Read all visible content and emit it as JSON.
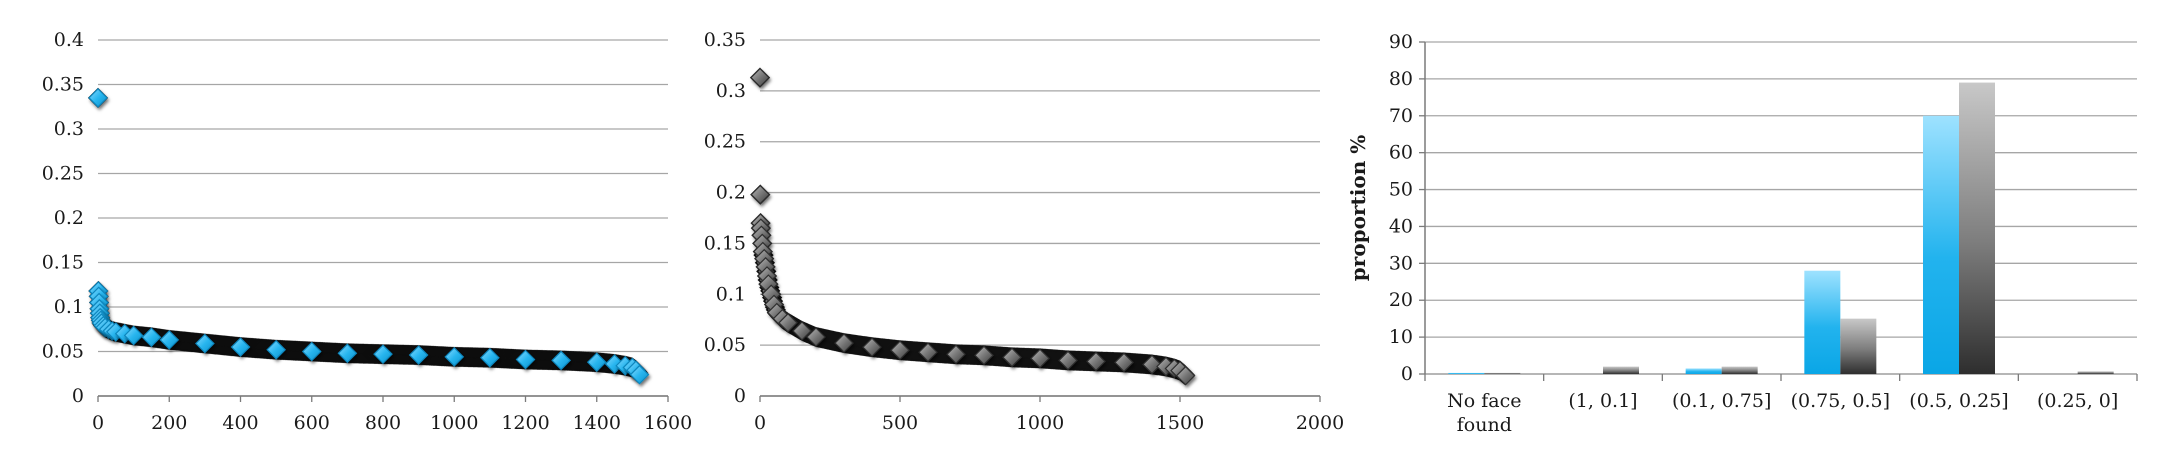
{
  "chart_data": [
    {
      "type": "scatter",
      "title": "",
      "xlabel": "",
      "ylabel": "",
      "xlim": [
        0,
        1600
      ],
      "ylim": [
        0,
        0.4
      ],
      "x_ticks": [
        "0",
        "200",
        "400",
        "600",
        "800",
        "1000",
        "1200",
        "1400",
        "1600"
      ],
      "y_ticks": [
        "0",
        "0.05",
        "0.1",
        "0.15",
        "0.2",
        "0.25",
        "0.3",
        "0.35",
        "0.4"
      ],
      "grid": true,
      "marker": "diamond",
      "color": "#29abe2",
      "series": [
        {
          "x": [
            0,
            1,
            2,
            3,
            4,
            5,
            6,
            8,
            10,
            15,
            20,
            30,
            40,
            50,
            75,
            100,
            150,
            200,
            300,
            400,
            500,
            600,
            700,
            800,
            900,
            1000,
            1100,
            1200,
            1300,
            1400,
            1450,
            1480,
            1500,
            1510,
            1520
          ],
          "y": [
            0.335,
            0.118,
            0.112,
            0.105,
            0.098,
            0.093,
            0.088,
            0.085,
            0.082,
            0.079,
            0.077,
            0.075,
            0.073,
            0.072,
            0.07,
            0.068,
            0.066,
            0.063,
            0.059,
            0.055,
            0.052,
            0.05,
            0.048,
            0.047,
            0.046,
            0.044,
            0.043,
            0.041,
            0.04,
            0.038,
            0.036,
            0.034,
            0.032,
            0.029,
            0.024
          ]
        }
      ]
    },
    {
      "type": "scatter",
      "title": "",
      "xlabel": "",
      "ylabel": "",
      "xlim": [
        0,
        2000
      ],
      "ylim": [
        0,
        0.35
      ],
      "x_ticks": [
        "0",
        "500",
        "1000",
        "1500",
        "2000"
      ],
      "y_ticks": [
        "0",
        "0.05",
        "0.1",
        "0.15",
        "0.2",
        "0.25",
        "0.3",
        "0.35"
      ],
      "grid": true,
      "marker": "diamond",
      "color": "#555555",
      "series": [
        {
          "x": [
            0,
            1,
            2,
            3,
            5,
            8,
            10,
            15,
            20,
            25,
            30,
            40,
            50,
            60,
            80,
            100,
            150,
            200,
            300,
            400,
            500,
            600,
            700,
            800,
            900,
            1000,
            1100,
            1200,
            1300,
            1400,
            1450,
            1480,
            1500,
            1520
          ],
          "y": [
            0.313,
            0.198,
            0.17,
            0.165,
            0.158,
            0.15,
            0.142,
            0.135,
            0.127,
            0.118,
            0.11,
            0.1,
            0.09,
            0.082,
            0.076,
            0.072,
            0.064,
            0.058,
            0.052,
            0.048,
            0.045,
            0.043,
            0.041,
            0.04,
            0.038,
            0.037,
            0.035,
            0.034,
            0.033,
            0.031,
            0.029,
            0.027,
            0.025,
            0.02
          ]
        }
      ]
    },
    {
      "type": "bar",
      "title": "",
      "xlabel": "",
      "ylabel": "proportion %",
      "ylim": [
        0,
        90
      ],
      "y_ticks": [
        "0",
        "10",
        "20",
        "30",
        "40",
        "50",
        "60",
        "70",
        "80",
        "90"
      ],
      "grid": true,
      "categories": [
        "No face found",
        "(1, 0.1]",
        "(0.1, 0.75]",
        "(0.75, 0.5]",
        "(0.5, 0.25]",
        "(0.25, 0]"
      ],
      "category_lines": [
        [
          "No face",
          "found"
        ],
        [
          "(1, 0.1]"
        ],
        [
          "(0.1, 0.75]"
        ],
        [
          "(0.75, 0.5]"
        ],
        [
          "(0.5, 0.25]"
        ],
        [
          "(0.25, 0]"
        ]
      ],
      "series": [
        {
          "values": [
            0.3,
            0,
            1.5,
            28,
            70,
            0
          ],
          "color": "#29abe2"
        },
        {
          "values": [
            0.3,
            2,
            2,
            15,
            79,
            0.7
          ],
          "color": "#6e6e6e"
        }
      ]
    }
  ]
}
